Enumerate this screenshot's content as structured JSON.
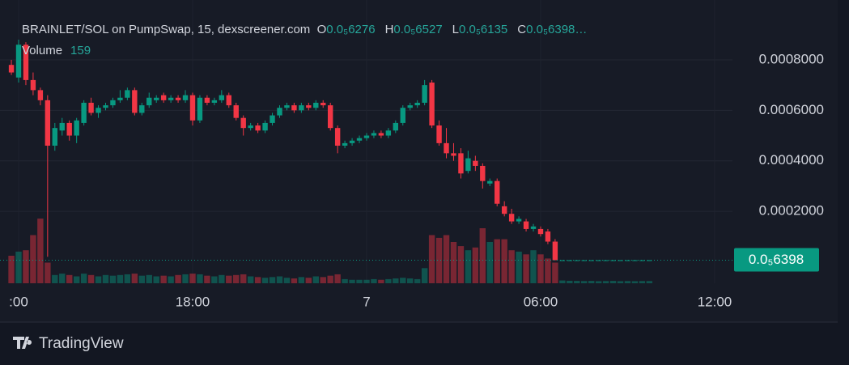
{
  "header": {
    "title": "BRAINLET/SOL on PumpSwap, 15, dexscreener.com",
    "ohlc": [
      {
        "label": "O",
        "value": "0.0₅6276"
      },
      {
        "label": "H",
        "value": "0.0₅6527"
      },
      {
        "label": "L",
        "value": "0.0₅6135"
      },
      {
        "label": "C",
        "value": "0.0₅6398…"
      }
    ],
    "volume_label": "Volume",
    "volume_value": "159"
  },
  "price_tag": "0.0₅6398",
  "brand": "TradingView",
  "chart_data": {
    "type": "candlestick",
    "up_color": "#089981",
    "down_color": "#f23645",
    "grid": true,
    "xlim": [
      11.358,
      36.615
    ],
    "xticks": [
      {
        "value": 12,
        "label": ":00"
      },
      {
        "value": 18,
        "label": "18:00"
      },
      {
        "value": 24,
        "label": "7"
      },
      {
        "value": 30,
        "label": "06:00"
      },
      {
        "value": 36,
        "label": "12:00"
      }
    ],
    "ylim": [
      -8.5e-05,
      0.001005
    ],
    "yticks": [
      {
        "value": 0.0002,
        "label": "0.0002000"
      },
      {
        "value": 0.0004,
        "label": "0.0004000"
      },
      {
        "value": 0.0006,
        "label": "0.0006000"
      },
      {
        "value": 0.0008,
        "label": "0.0008000"
      }
    ],
    "y2lim": [
      0,
      20000
    ],
    "x": [
      11.75,
      12,
      12.25,
      12.5,
      12.75,
      13,
      13.25,
      13.5,
      13.75,
      14,
      14.25,
      14.5,
      14.75,
      15,
      15.25,
      15.5,
      15.75,
      16,
      16.25,
      16.5,
      16.75,
      17,
      17.25,
      17.5,
      17.75,
      18,
      18.25,
      18.5,
      18.75,
      19,
      19.25,
      19.5,
      19.75,
      20,
      20.25,
      20.5,
      20.75,
      21,
      21.25,
      21.5,
      21.75,
      22,
      22.25,
      22.5,
      22.75,
      23,
      23.25,
      23.5,
      23.75,
      24,
      24.25,
      24.5,
      24.75,
      25,
      25.25,
      25.5,
      25.75,
      26,
      26.25,
      26.5,
      26.75,
      27,
      27.25,
      27.5,
      27.75,
      28,
      28.25,
      28.5,
      28.75,
      29,
      29.25,
      29.5,
      29.75,
      30,
      30.25,
      30.5,
      30.75,
      31,
      31.25,
      31.5,
      31.75,
      32,
      32.25,
      32.5,
      32.75,
      33,
      33.25,
      33.5,
      33.75
    ],
    "open": [
      0.00078,
      0.00073,
      0.00086,
      0.00072,
      0.00068,
      0.00064,
      0.00046,
      0.00052,
      0.00055,
      0.0005,
      0.00055,
      0.00063,
      0.00059,
      0.00061,
      0.00062,
      0.00064,
      0.00065,
      0.00068,
      0.00059,
      0.00062,
      0.00064,
      0.00066,
      0.00064,
      0.00065,
      0.00064,
      0.00066,
      0.00056,
      0.00065,
      0.00063,
      0.00064,
      0.00066,
      0.00062,
      0.00057,
      0.00053,
      0.00054,
      0.00052,
      0.00055,
      0.00058,
      0.00061,
      0.00062,
      0.0006,
      0.00062,
      0.00061,
      0.00063,
      0.00062,
      0.00053,
      0.00046,
      0.00047,
      0.00048,
      0.00049,
      0.0005,
      0.00051,
      0.0005,
      0.00052,
      0.00055,
      0.00061,
      0.00062,
      0.00063,
      0.00071,
      0.00054,
      0.00047,
      0.00043,
      0.00043,
      0.00036,
      0.0004,
      0.00038,
      0.00031,
      0.00032,
      0.00022,
      0.00019,
      0.00016,
      0.00016,
      0.00013,
      0.00013,
      0.00012,
      8e-05,
      6.4e-06,
      6.4e-06,
      6.4e-06,
      6.4e-06,
      6.4e-06,
      6.4e-06,
      6.4e-06,
      6.4e-06,
      6.4e-06,
      6.4e-06,
      6.4e-06,
      6.4e-06,
      6.4e-06
    ],
    "high": [
      0.0008,
      0.00088,
      0.00087,
      0.00075,
      0.00069,
      0.00066,
      0.00055,
      0.00057,
      0.00056,
      0.00057,
      0.00064,
      0.00065,
      0.00062,
      0.00063,
      0.00065,
      0.00068,
      0.00069,
      0.00069,
      0.00063,
      0.00067,
      0.00066,
      0.00067,
      0.00066,
      0.00066,
      0.00068,
      0.00067,
      0.00066,
      0.00066,
      0.00065,
      0.00068,
      0.00067,
      0.00063,
      0.00058,
      0.00055,
      0.00055,
      0.00056,
      0.00059,
      0.00062,
      0.00063,
      0.00063,
      0.00063,
      0.00063,
      0.00064,
      0.00064,
      0.00063,
      0.00054,
      0.00048,
      0.00049,
      0.0005,
      0.00051,
      0.00052,
      0.00052,
      0.00053,
      0.00056,
      0.00062,
      0.00063,
      0.00064,
      0.00072,
      0.00072,
      0.00056,
      0.00053,
      0.00047,
      0.00045,
      0.00044,
      0.00042,
      0.00039,
      0.00033,
      0.00033,
      0.00024,
      0.00021,
      0.00018,
      0.00017,
      0.00015,
      0.00014,
      0.00013,
      9e-05,
      6.6e-06,
      6.6e-06,
      6.6e-06,
      6.6e-06,
      6.6e-06,
      6.6e-06,
      6.6e-06,
      6.6e-06,
      6.6e-06,
      6.6e-06,
      6.6e-06,
      6.6e-06,
      6.6e-06
    ],
    "low": [
      0.00074,
      0.00071,
      0.0007,
      0.00066,
      0.00062,
      2e-05,
      0.00044,
      0.0005,
      0.00048,
      0.00047,
      0.00054,
      0.00058,
      0.00057,
      0.0006,
      0.00061,
      0.00063,
      0.00064,
      0.00058,
      0.00058,
      0.00061,
      0.00063,
      0.00063,
      0.00063,
      0.00063,
      0.00063,
      0.00054,
      0.00055,
      0.00062,
      0.00062,
      0.00063,
      0.00061,
      0.00056,
      0.0005,
      0.00052,
      0.00051,
      0.00051,
      0.00054,
      0.00057,
      0.0006,
      0.00059,
      0.00059,
      0.0006,
      0.0006,
      0.00061,
      0.00052,
      0.00043,
      0.00045,
      0.00046,
      0.00047,
      0.00048,
      0.00049,
      0.00049,
      0.00049,
      0.00051,
      0.00054,
      0.0006,
      0.00061,
      0.00062,
      0.00053,
      0.00046,
      0.00041,
      0.0004,
      0.00033,
      0.00035,
      0.00036,
      0.00029,
      0.0003,
      0.00022,
      0.00018,
      0.00015,
      0.00015,
      0.00012,
      0.00012,
      0.0001,
      7e-05,
      6e-06,
      6.2e-06,
      6.2e-06,
      6.2e-06,
      6.2e-06,
      6.2e-06,
      6.2e-06,
      6.2e-06,
      6.2e-06,
      6.2e-06,
      6.2e-06,
      6.2e-06,
      6.2e-06,
      6.2e-06
    ],
    "close": [
      0.00075,
      0.00086,
      0.00072,
      0.00068,
      0.00064,
      0.00046,
      0.00053,
      0.00055,
      0.0005,
      0.00056,
      0.00063,
      0.00059,
      0.00061,
      0.00062,
      0.00064,
      0.00065,
      0.00068,
      0.00059,
      0.00062,
      0.00065,
      0.00065,
      0.00064,
      0.00065,
      0.00064,
      0.00066,
      0.00056,
      0.00065,
      0.00063,
      0.00064,
      0.00066,
      0.00062,
      0.00057,
      0.00053,
      0.00054,
      0.00052,
      0.00055,
      0.00058,
      0.00061,
      0.00062,
      0.0006,
      0.00062,
      0.00061,
      0.00063,
      0.00062,
      0.00053,
      0.00046,
      0.00047,
      0.00048,
      0.00049,
      0.0005,
      0.00051,
      0.0005,
      0.00052,
      0.00055,
      0.00061,
      0.00062,
      0.00063,
      0.0007,
      0.00054,
      0.00047,
      0.00043,
      0.00042,
      0.00035,
      0.00041,
      0.00038,
      0.00032,
      0.00032,
      0.00023,
      0.00019,
      0.00016,
      0.00017,
      0.00013,
      0.00014,
      0.00011,
      8e-05,
      6.5e-06,
      6.4e-06,
      6.4e-06,
      6.4e-06,
      6.4e-06,
      6.4e-06,
      6.4e-06,
      6.4e-06,
      6.4e-06,
      6.4e-06,
      6.4e-06,
      6.4e-06,
      6.4e-06,
      6.4e-06
    ],
    "volume": [
      2000,
      2300,
      2400,
      3500,
      4700,
      1500,
      600,
      700,
      600,
      500,
      700,
      600,
      500,
      600,
      550,
      600,
      650,
      700,
      550,
      600,
      500,
      550,
      500,
      600,
      650,
      700,
      650,
      550,
      500,
      600,
      550,
      600,
      650,
      500,
      450,
      400,
      450,
      500,
      400,
      350,
      450,
      400,
      500,
      450,
      550,
      650,
      300,
      250,
      250,
      250,
      300,
      250,
      300,
      350,
      400,
      350,
      300,
      1100,
      3500,
      3300,
      3500,
      3000,
      2700,
      2400,
      2600,
      4000,
      3000,
      3200,
      3200,
      2400,
      2300,
      2100,
      2400,
      2100,
      1800,
      1500,
      200,
      180,
      170,
      160,
      170,
      150,
      160,
      170,
      150,
      160,
      150,
      160,
      159
    ]
  }
}
